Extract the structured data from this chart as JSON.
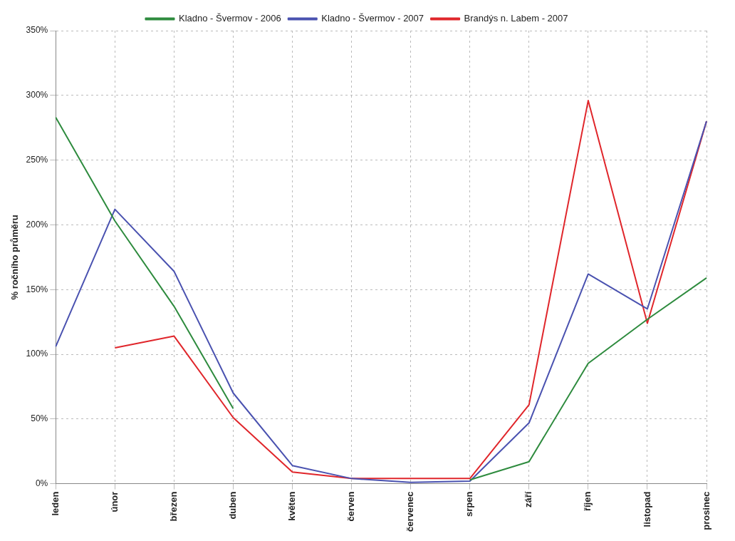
{
  "chart_data": {
    "type": "line",
    "ylabel": "% ročního průměru",
    "categories": [
      "leden",
      "únor",
      "březen",
      "duben",
      "květen",
      "červen",
      "červenec",
      "srpen",
      "září",
      "říjen",
      "listopad",
      "prosinec"
    ],
    "series": [
      {
        "name": "Kladno - Švermov - 2006",
        "color": "#2e8b3e",
        "values": [
          283,
          203,
          137,
          58,
          null,
          null,
          null,
          3,
          17,
          93,
          127,
          159
        ]
      },
      {
        "name": "Kladno - Švermov - 2007",
        "color": "#4a52b0",
        "values": [
          106,
          212,
          164,
          70,
          14,
          4,
          1,
          2,
          47,
          162,
          135,
          280
        ]
      },
      {
        "name": "Brandýs n. Labem - 2007",
        "color": "#e0262b",
        "values": [
          null,
          105,
          114,
          51,
          9,
          4,
          4,
          4,
          61,
          296,
          124,
          280
        ]
      }
    ],
    "ylim": [
      0,
      350
    ],
    "yticks": [
      {
        "value": 0,
        "label": "0%"
      },
      {
        "value": 50,
        "label": "50%"
      },
      {
        "value": 100,
        "label": "100%"
      },
      {
        "value": 150,
        "label": "150%"
      },
      {
        "value": 200,
        "label": "200%"
      },
      {
        "value": 250,
        "label": "250%"
      },
      {
        "value": 300,
        "label": "300%"
      },
      {
        "value": 350,
        "label": "350%"
      }
    ],
    "grid": true,
    "legend": "top",
    "marker": "none",
    "line_style": "solid"
  }
}
